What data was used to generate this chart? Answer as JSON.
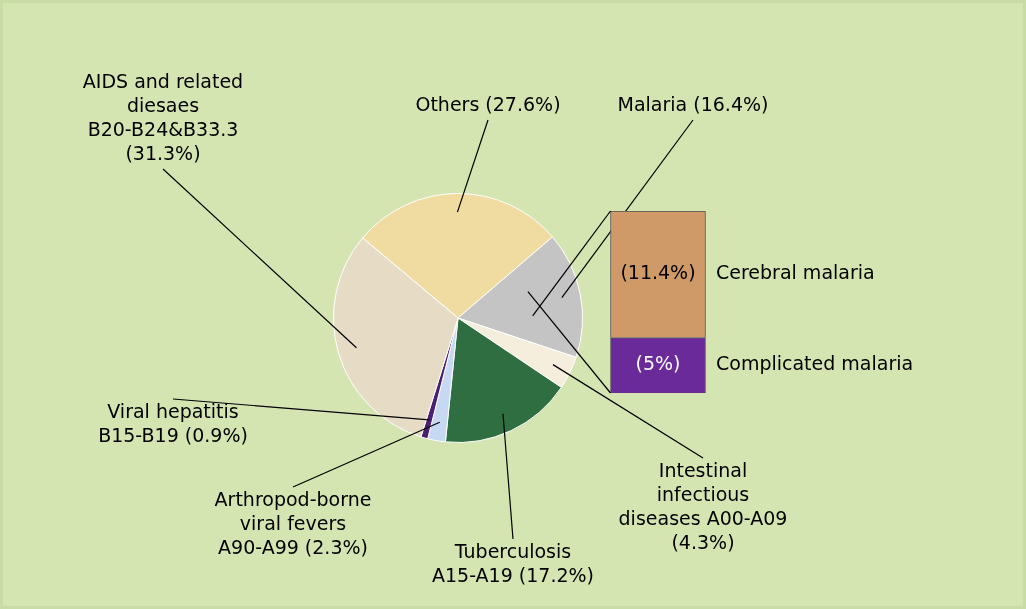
{
  "chart_data": [
    {
      "type": "pie",
      "categories": [
        "Others (27.6%)",
        "Malaria (16.4%)",
        "Intestinal infectious diseases A00-A09 (4.3%)",
        "Tuberculosis A15-A19 (17.2%)",
        "Arthropod-borne viral fevers A90-A99 (2.3%)",
        "Viral hepatitis B15-B19 (0.9%)",
        "AIDS and related diesaes B20-B24&B33.3 (31.3%)"
      ],
      "values": [
        27.6,
        16.4,
        4.3,
        17.2,
        2.3,
        0.9,
        31.3
      ],
      "colors": [
        "#f0dba0",
        "#c4c4c4",
        "#f6eedc",
        "#2f6e40",
        "#c6d8f2",
        "#4a2070",
        "#e6dcc6"
      ]
    },
    {
      "type": "bar",
      "stacked": true,
      "categories": [
        null
      ],
      "series": [
        {
          "name": "Complicated malaria",
          "color": "#6a2a9a",
          "values": [
            5
          ],
          "value_labels": [
            "(5%)"
          ]
        },
        {
          "name": "Cerebral malaria",
          "color": "#d09a68",
          "values": [
            11.4
          ],
          "value_labels": [
            "(11.4%)"
          ]
        }
      ]
    }
  ]
}
